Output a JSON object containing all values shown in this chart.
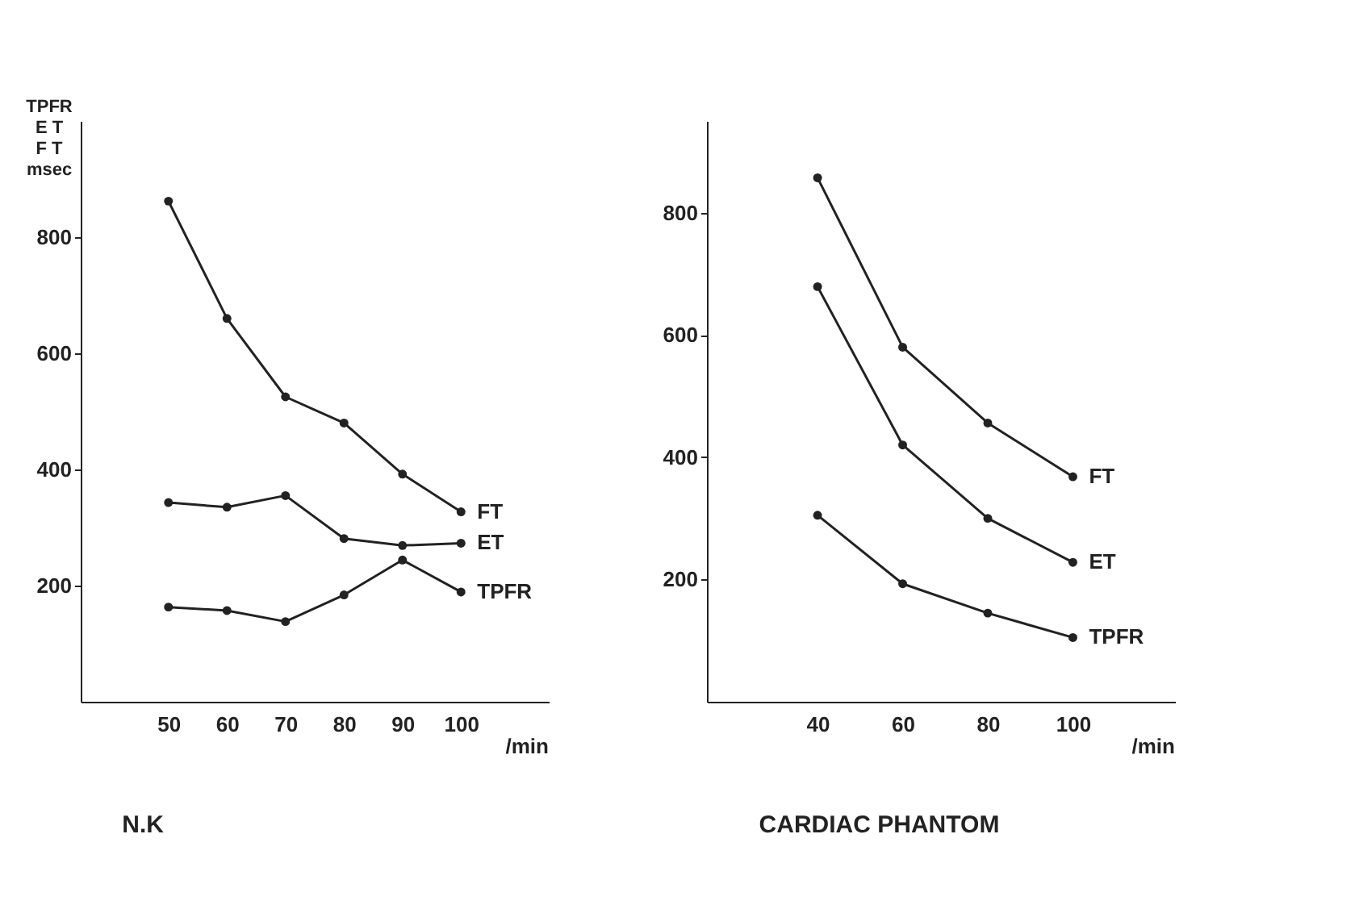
{
  "chart_data": [
    {
      "type": "line",
      "title": "N.K",
      "ylabel": "TPFR\nE T\nF T\nmsec",
      "xlabel": "/min",
      "x": [
        50,
        60,
        70,
        80,
        90,
        100
      ],
      "xlim": [
        35,
        115
      ],
      "xticks": [
        50,
        60,
        70,
        80,
        90,
        100
      ],
      "ylim": [
        0,
        1000
      ],
      "yticks": [
        200,
        400,
        600,
        800
      ],
      "marker": "circle",
      "grid": false,
      "legend": false,
      "series": [
        {
          "name": "FT",
          "color": "#222222",
          "values": [
            862,
            660,
            525,
            480,
            392,
            327
          ]
        },
        {
          "name": "ET",
          "color": "#222222",
          "values": [
            343,
            335,
            355,
            281,
            269,
            273
          ]
        },
        {
          "name": "TPFR",
          "color": "#222222",
          "values": [
            163,
            157,
            138,
            184,
            244,
            189
          ]
        }
      ]
    },
    {
      "type": "line",
      "title": "CARDIAC PHANTOM",
      "xlabel": "/min",
      "x": [
        40,
        60,
        80,
        100
      ],
      "xlim": [
        14,
        124
      ],
      "xticks": [
        40,
        60,
        80,
        100
      ],
      "ylim": [
        0,
        950
      ],
      "yticks": [
        200,
        400,
        600,
        800
      ],
      "marker": "circle",
      "grid": false,
      "legend": false,
      "series": [
        {
          "name": "FT",
          "color": "#222222",
          "values": [
            857,
            580,
            456,
            368
          ]
        },
        {
          "name": "ET",
          "color": "#222222",
          "values": [
            679,
            420,
            300,
            228
          ]
        },
        {
          "name": "TPFR",
          "color": "#222222",
          "values": [
            305,
            193,
            145,
            105
          ]
        }
      ]
    }
  ]
}
